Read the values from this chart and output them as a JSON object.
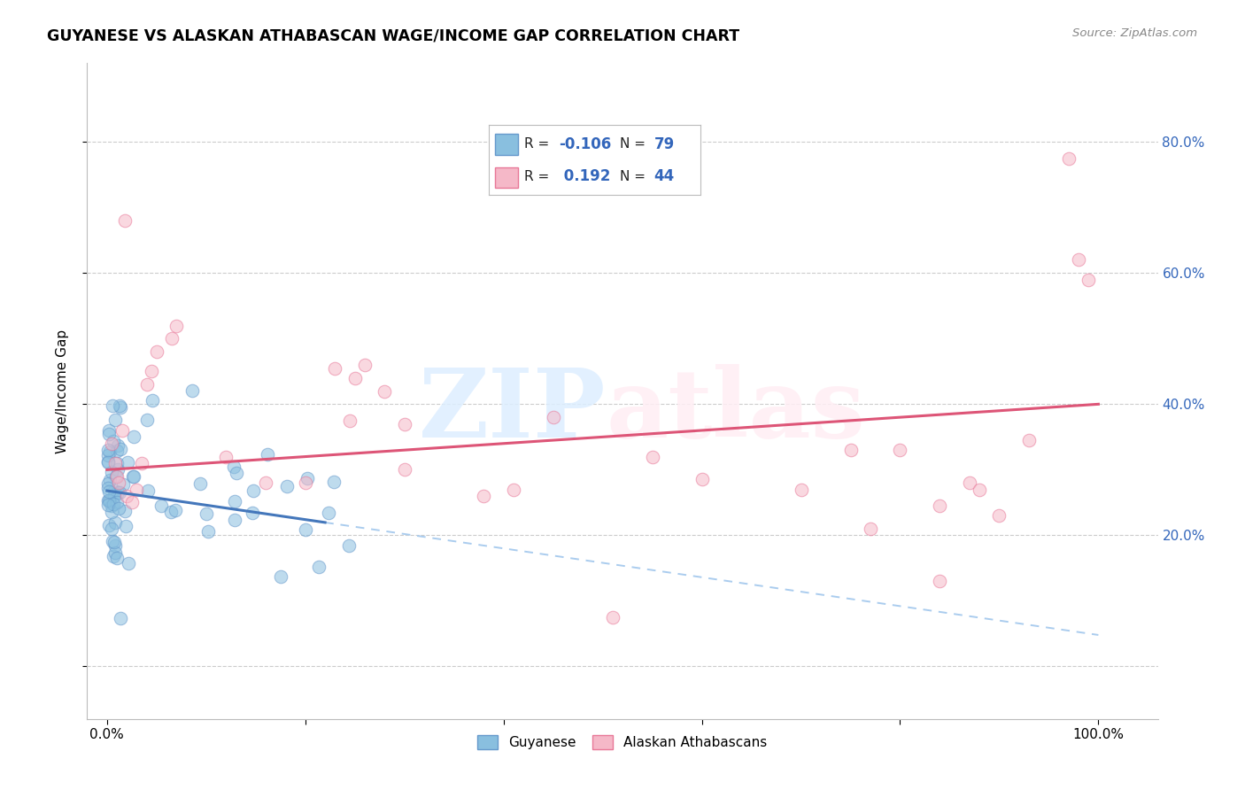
{
  "title": "GUYANESE VS ALASKAN ATHABASCAN WAGE/INCOME GAP CORRELATION CHART",
  "source": "Source: ZipAtlas.com",
  "ylabel": "Wage/Income Gap",
  "legend_label1": "Guyanese",
  "legend_label2": "Alaskan Athabascans",
  "R1": -0.106,
  "N1": 79,
  "R2": 0.192,
  "N2": 44,
  "color_blue": "#89BFDF",
  "color_blue_edge": "#6699CC",
  "color_pink": "#F5B8C8",
  "color_pink_edge": "#E87898",
  "color_blue_line": "#4477BB",
  "color_blue_dash": "#AACCEE",
  "color_pink_line": "#DD5577",
  "watermark_zip_color": "#DDEEFF",
  "watermark_atlas_color": "#FFEEF4",
  "ytick_color": "#3366BB",
  "grid_color": "#CCCCCC",
  "xlim": [
    -0.02,
    1.06
  ],
  "ylim": [
    -0.08,
    0.92
  ],
  "y_ticks": [
    0.0,
    0.2,
    0.4,
    0.6,
    0.8
  ],
  "y_tick_labels": [
    "",
    "20.0%",
    "40.0%",
    "60.0%",
    "80.0%"
  ],
  "x_ticks": [
    0.0,
    0.2,
    0.4,
    0.6,
    0.8,
    1.0
  ],
  "x_tick_labels_show": [
    "0.0%",
    "100.0%"
  ],
  "blue_line_x0": 0.0,
  "blue_line_y0": 0.268,
  "blue_line_slope": -0.22,
  "blue_line_solid_end": 0.22,
  "pink_line_x0": 0.0,
  "pink_line_y0": 0.3,
  "pink_line_slope": 0.1,
  "scatter_size": 110,
  "scatter_alpha": 0.55,
  "scatter_lw": 0.8
}
